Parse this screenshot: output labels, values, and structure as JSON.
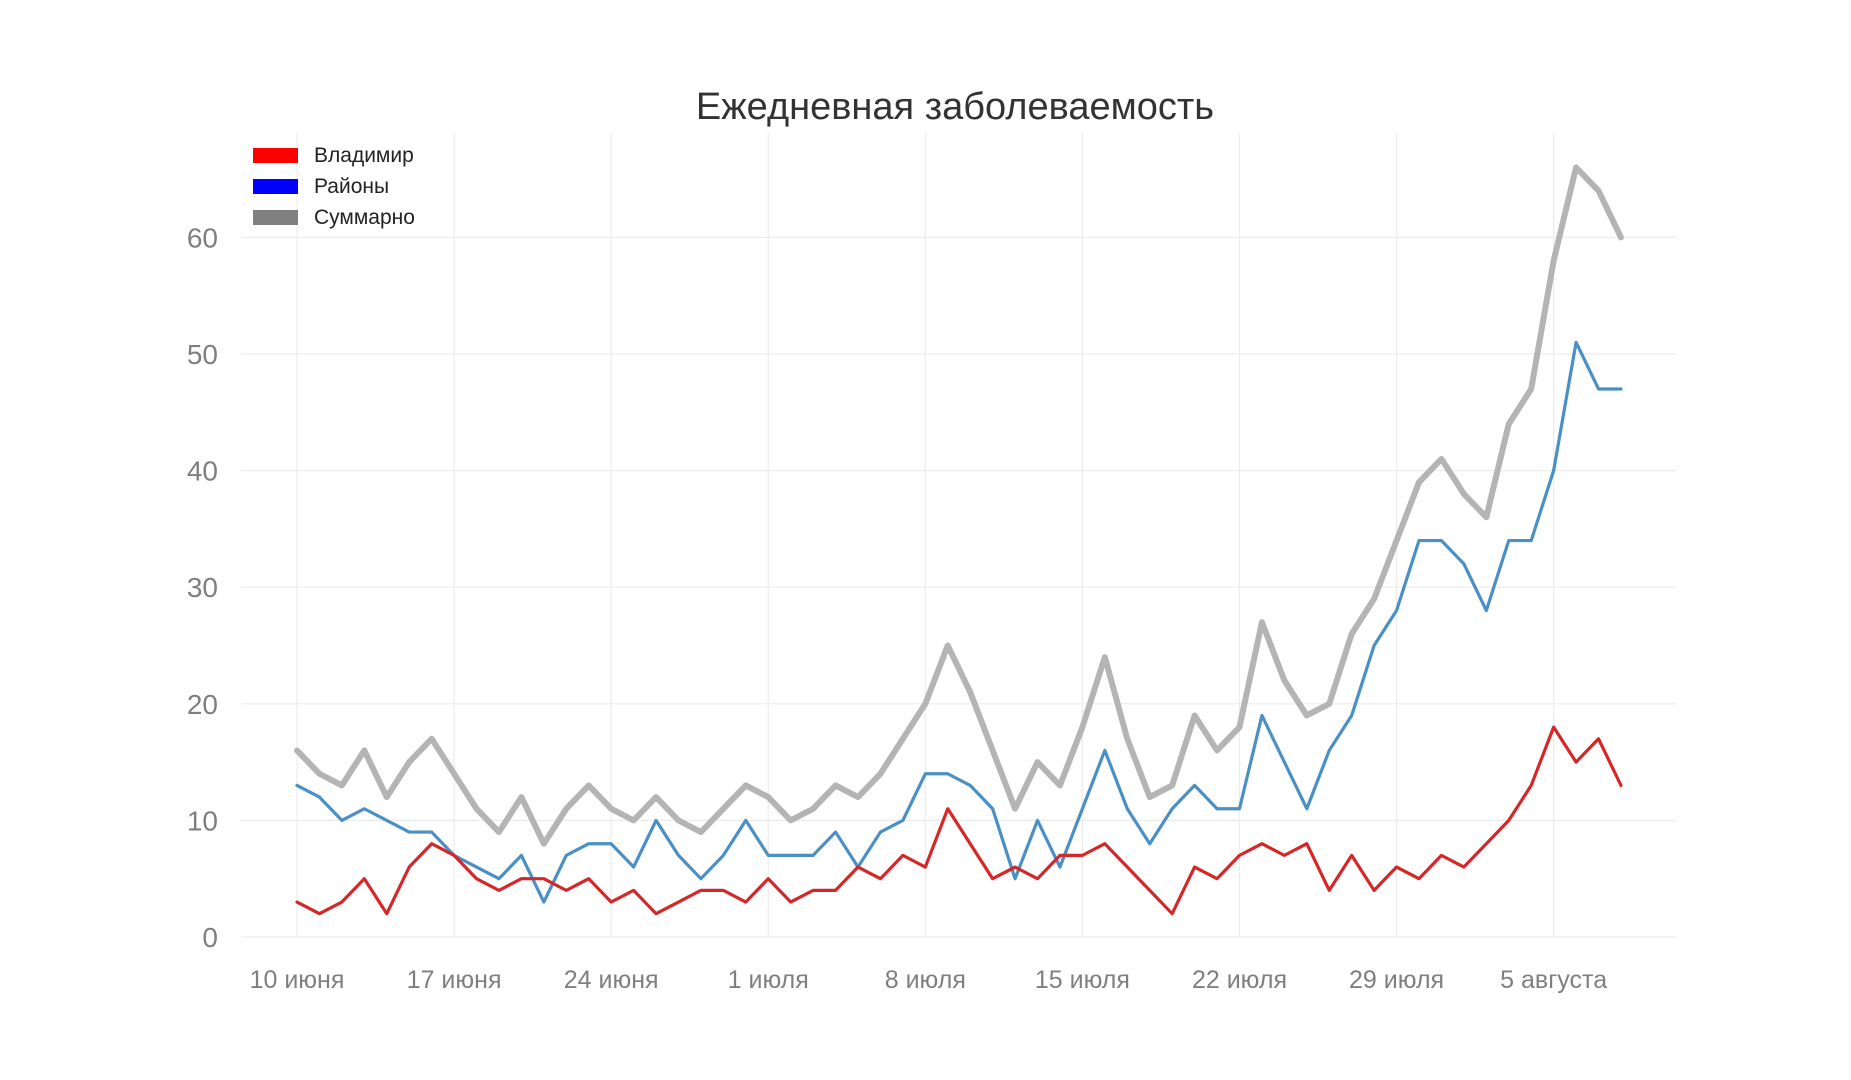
{
  "chart_data": {
    "type": "line",
    "title": "Ежедневная заболеваемость",
    "xlabel": "",
    "ylabel": "",
    "ylim": [
      0,
      67
    ],
    "y_ticks": [
      0,
      10,
      20,
      30,
      40,
      50,
      60
    ],
    "x_start_date": "2020-06-10",
    "x_tick_labels": [
      "10 июня",
      "17 июня",
      "24 июня",
      "1 июля",
      "8 июля",
      "15 июля",
      "22 июля",
      "29 июля",
      "5 августа"
    ],
    "grid": true,
    "legend_position": "top-left",
    "legend": [
      {
        "name": "Владимир",
        "color": "#ff0000"
      },
      {
        "name": "Районы",
        "color": "#0000ff"
      },
      {
        "name": "Суммарно",
        "color": "#808080"
      }
    ],
    "series": [
      {
        "name": "Владимир",
        "color": "#d62728",
        "values": [
          3,
          2,
          3,
          5,
          2,
          6,
          8,
          7,
          5,
          4,
          5,
          5,
          4,
          5,
          3,
          4,
          2,
          3,
          4,
          4,
          3,
          5,
          3,
          4,
          4,
          6,
          5,
          7,
          6,
          11,
          8,
          5,
          6,
          5,
          7,
          7,
          8,
          6,
          4,
          2,
          6,
          5,
          7,
          8,
          7,
          8,
          4,
          7,
          4,
          6,
          5,
          7,
          6,
          8,
          10,
          13,
          18,
          15,
          17,
          13
        ]
      },
      {
        "name": "Районы",
        "color": "#4a90c4",
        "values": [
          13,
          12,
          10,
          11,
          10,
          9,
          9,
          7,
          6,
          5,
          7,
          3,
          7,
          8,
          8,
          6,
          10,
          7,
          5,
          7,
          10,
          7,
          7,
          7,
          9,
          6,
          9,
          10,
          14,
          14,
          13,
          11,
          5,
          10,
          6,
          11,
          16,
          11,
          8,
          11,
          13,
          11,
          11,
          19,
          15,
          11,
          16,
          19,
          25,
          28,
          34,
          34,
          32,
          28,
          34,
          34,
          40,
          51,
          47,
          47
        ]
      },
      {
        "name": "Суммарно",
        "color": "#b4b4b4",
        "values": [
          16,
          14,
          13,
          16,
          12,
          15,
          17,
          14,
          11,
          9,
          12,
          8,
          11,
          13,
          11,
          10,
          12,
          10,
          9,
          11,
          13,
          12,
          10,
          11,
          13,
          12,
          14,
          17,
          20,
          25,
          21,
          16,
          11,
          15,
          13,
          18,
          24,
          17,
          12,
          13,
          19,
          16,
          18,
          27,
          22,
          19,
          20,
          26,
          29,
          34,
          39,
          41,
          38,
          36,
          44,
          47,
          58,
          66,
          64,
          60
        ]
      }
    ]
  }
}
